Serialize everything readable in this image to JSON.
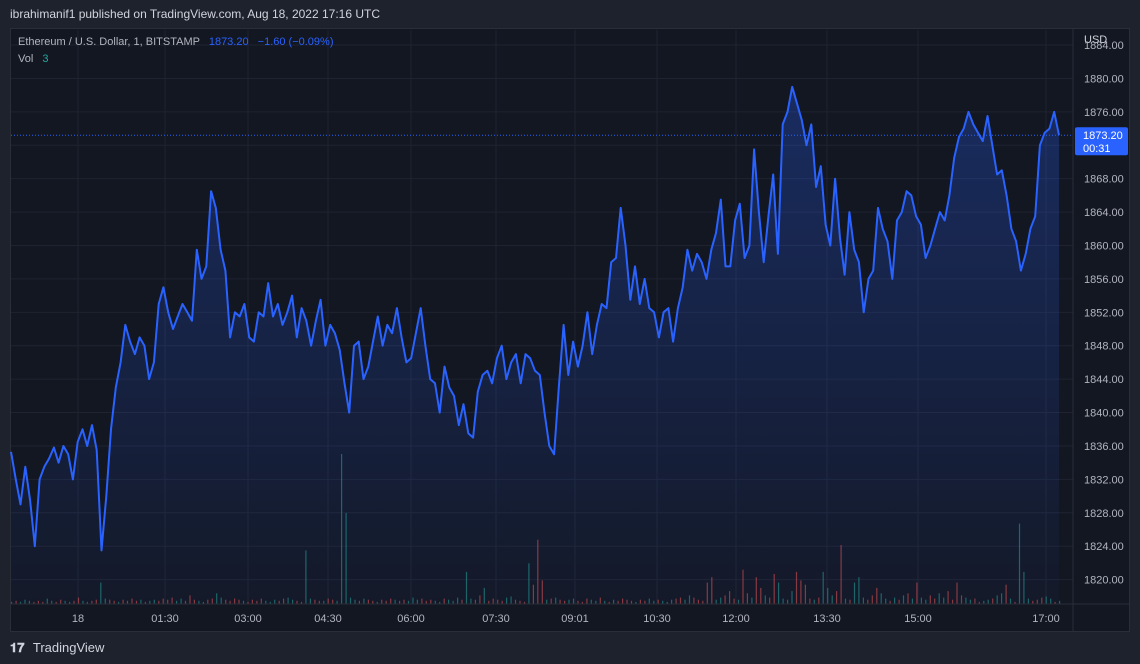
{
  "header": {
    "publisher_line": "ibrahimanif1 published on TradingView.com, Aug 18, 2022 17:16 UTC"
  },
  "legend": {
    "symbol": "Ethereum / U.S. Dollar, 1, BITSTAMP",
    "price": "1873.20",
    "change": "−1.60 (−0.09%)",
    "vol_label": "Vol",
    "vol_value": "3"
  },
  "price_scale": {
    "currency": "USD",
    "current_price": "1873.20",
    "countdown": "00:31"
  },
  "footer": {
    "brand": "TradingView"
  },
  "colors": {
    "line": "#2962ff",
    "volume_up": "#26a69a",
    "volume_down": "#ef5350",
    "background": "#131722"
  },
  "chart_data": {
    "type": "area",
    "title": "Ethereum / U.S. Dollar, 1, BITSTAMP",
    "ylabel": "USD",
    "ylim": [
      1817.2,
      1885.8
    ],
    "x_tick_labels": [
      "18",
      "01:30",
      "03:00",
      "04:30",
      "06:00",
      "07:30",
      "09:01",
      "10:30",
      "12:00",
      "13:30",
      "15:00",
      "17:00"
    ],
    "y_ticks": [
      1820,
      1824,
      1828,
      1832,
      1836,
      1840,
      1844,
      1848,
      1852,
      1856,
      1860,
      1864,
      1868,
      1872,
      1876,
      1880,
      1884
    ],
    "y_tick_labels": [
      "1820.00",
      "1824.00",
      "1828.00",
      "1832.00",
      "1836.00",
      "1840.00",
      "1844.00",
      "1848.00",
      "1852.00",
      "1856.00",
      "1860.00",
      "1864.00",
      "1868.00",
      "1872.00",
      "1876.00",
      "1880.00",
      "1884.00"
    ],
    "series": [
      {
        "name": "Ethereum / U.S. Dollar",
        "values": [
          1835.3,
          1832.0,
          1829.0,
          1833.5,
          1829.5,
          1824.0,
          1832.0,
          1833.5,
          1834.5,
          1835.8,
          1834.0,
          1836.0,
          1835.0,
          1832.0,
          1836.5,
          1838.0,
          1836.0,
          1838.5,
          1835.5,
          1823.5,
          1830.0,
          1838.0,
          1843.0,
          1846.0,
          1850.5,
          1848.5,
          1847.0,
          1849.0,
          1848.0,
          1844.0,
          1846.0,
          1853.0,
          1855.0,
          1852.0,
          1850.0,
          1851.5,
          1853.0,
          1852.0,
          1851.0,
          1859.5,
          1856.0,
          1857.5,
          1866.5,
          1864.5,
          1859.5,
          1857.0,
          1849.0,
          1852.0,
          1851.5,
          1853.0,
          1849.0,
          1848.5,
          1852.0,
          1851.5,
          1855.5,
          1851.5,
          1853.0,
          1850.5,
          1852.0,
          1854.0,
          1849.0,
          1852.5,
          1851.0,
          1848.0,
          1851.0,
          1853.5,
          1848.0,
          1850.5,
          1849.5,
          1847.5,
          1843.5,
          1840.0,
          1848.0,
          1848.5,
          1844.0,
          1845.5,
          1848.5,
          1851.5,
          1848.0,
          1850.5,
          1849.5,
          1852.5,
          1849.0,
          1846.0,
          1846.5,
          1849.5,
          1852.5,
          1848.0,
          1844.0,
          1843.5,
          1840.0,
          1845.5,
          1843.0,
          1842.0,
          1838.5,
          1841.0,
          1837.5,
          1837.0,
          1842.5,
          1844.5,
          1845.0,
          1843.5,
          1846.5,
          1848.0,
          1844.0,
          1846.0,
          1847.0,
          1843.5,
          1847.0,
          1846.5,
          1845.0,
          1844.5,
          1840.0,
          1836.0,
          1835.0,
          1843.0,
          1850.5,
          1844.5,
          1848.5,
          1845.5,
          1848.0,
          1852.0,
          1847.0,
          1850.5,
          1853.0,
          1852.5,
          1858.0,
          1858.5,
          1864.5,
          1860.0,
          1853.5,
          1857.5,
          1853.0,
          1856.0,
          1852.5,
          1852.0,
          1849.0,
          1852.0,
          1852.5,
          1848.5,
          1852.5,
          1855.0,
          1859.5,
          1857.0,
          1859.0,
          1858.0,
          1856.0,
          1859.5,
          1861.5,
          1865.5,
          1857.5,
          1857.5,
          1863.0,
          1865.0,
          1858.5,
          1860.0,
          1871.5,
          1864.0,
          1858.0,
          1863.5,
          1868.5,
          1859.0,
          1874.5,
          1876.0,
          1879.0,
          1877.0,
          1875.0,
          1872.0,
          1874.5,
          1867.0,
          1869.5,
          1862.5,
          1860.0,
          1868.0,
          1861.0,
          1856.5,
          1864.0,
          1859.5,
          1858.0,
          1852.0,
          1856.0,
          1857.0,
          1864.5,
          1862.0,
          1860.5,
          1856.0,
          1863.0,
          1864.0,
          1866.5,
          1866.0,
          1863.5,
          1862.5,
          1858.5,
          1860.0,
          1862.0,
          1864.0,
          1863.0,
          1866.0,
          1870.5,
          1873.0,
          1874.0,
          1876.0,
          1874.5,
          1873.5,
          1872.5,
          1875.5,
          1872.0,
          1868.5,
          1869.0,
          1866.0,
          1862.0,
          1860.5,
          1857.0,
          1859.0,
          1862.0,
          1863.5,
          1872.0,
          1873.5,
          1874.0,
          1876.0,
          1873.2
        ]
      }
    ],
    "volume": {
      "label": "Vol",
      "heights": [
        2,
        3,
        2,
        4,
        3,
        2,
        3,
        2,
        5,
        3,
        2,
        4,
        3,
        2,
        3,
        6,
        3,
        2,
        3,
        4,
        20,
        5,
        4,
        3,
        2,
        4,
        3,
        5,
        3,
        4,
        2,
        3,
        4,
        3,
        5,
        4,
        6,
        3,
        5,
        3,
        8,
        4,
        3,
        2,
        4,
        5,
        10,
        6,
        4,
        3,
        5,
        4,
        3,
        2,
        4,
        3,
        5,
        3,
        2,
        4,
        3,
        5,
        6,
        4,
        3,
        2,
        50,
        5,
        4,
        3,
        3,
        5,
        4,
        3,
        140,
        85,
        6,
        4,
        3,
        5,
        4,
        3,
        2,
        4,
        3,
        5,
        4,
        3,
        4,
        3,
        6,
        4,
        5,
        3,
        4,
        3,
        2,
        5,
        4,
        3,
        6,
        4,
        30,
        5,
        4,
        8,
        15,
        3,
        5,
        4,
        3,
        6,
        7,
        4,
        3,
        2,
        38,
        18,
        60,
        22,
        4,
        5,
        6,
        4,
        3,
        4,
        5,
        3,
        2,
        5,
        4,
        3,
        6,
        3,
        2,
        4,
        3,
        5,
        4,
        3,
        2,
        4,
        3,
        5,
        3,
        4,
        3,
        2,
        4,
        5,
        6,
        4,
        8,
        6,
        4,
        3,
        20,
        25,
        4,
        6,
        8,
        12,
        5,
        4,
        32,
        10,
        6,
        25,
        15,
        8,
        6,
        28,
        20,
        5,
        4,
        12,
        30,
        22,
        18,
        5,
        4,
        6,
        30,
        15,
        8,
        12,
        55,
        5,
        4,
        20,
        25,
        6,
        4,
        8,
        15,
        10,
        5,
        3,
        6,
        4,
        8,
        10,
        5,
        20,
        6,
        4,
        8,
        5,
        10,
        6,
        12,
        4,
        20,
        8,
        6,
        4,
        5,
        2,
        3,
        4,
        5,
        8,
        10,
        18,
        5,
        2,
        75,
        30,
        5,
        3,
        4,
        6,
        7,
        5,
        2,
        3
      ],
      "directions": "dduuuddduudduudduudduuddudddduduudddduuddduudduuddddudddduuudduudduuddudduuuuududdudddudduuuddduuduuuduuddudddduudddudddududduuddduudududdddudduuduuudduuddddduudddudduddudduuuudddduduuudduduuuddduududududuudduudddduudduuduududuuuddduuduudu"
    }
  }
}
